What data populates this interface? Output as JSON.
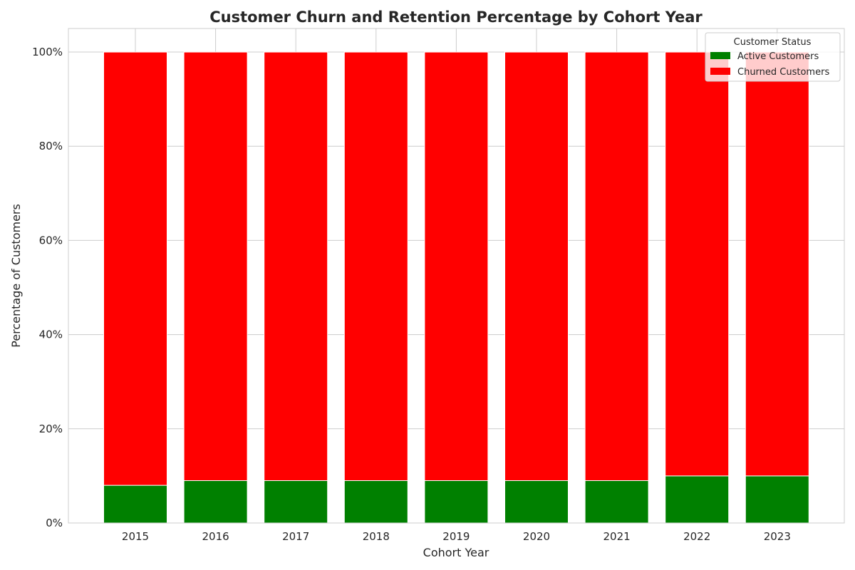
{
  "chart_data": {
    "type": "bar",
    "stacked": true,
    "title": "Customer Churn and Retention Percentage by Cohort Year",
    "xlabel": "Cohort Year",
    "ylabel": "Percentage of Customers",
    "categories": [
      "2015",
      "2016",
      "2017",
      "2018",
      "2019",
      "2020",
      "2021",
      "2022",
      "2023"
    ],
    "series": [
      {
        "name": "Active Customers",
        "color": "#008000",
        "values": [
          8,
          9,
          9,
          9,
          9,
          9,
          9,
          10,
          10
        ]
      },
      {
        "name": "Churned Customers",
        "color": "#ff0000",
        "values": [
          92,
          91,
          91,
          91,
          91,
          91,
          91,
          90,
          90
        ]
      }
    ],
    "ylim": [
      0,
      105
    ],
    "yticks": [
      0,
      20,
      40,
      60,
      80,
      100
    ],
    "ytick_labels": [
      "0%",
      "20%",
      "40%",
      "60%",
      "80%",
      "100%"
    ],
    "grid": true,
    "legend": {
      "title": "Customer Status",
      "placement": "top-right"
    }
  }
}
